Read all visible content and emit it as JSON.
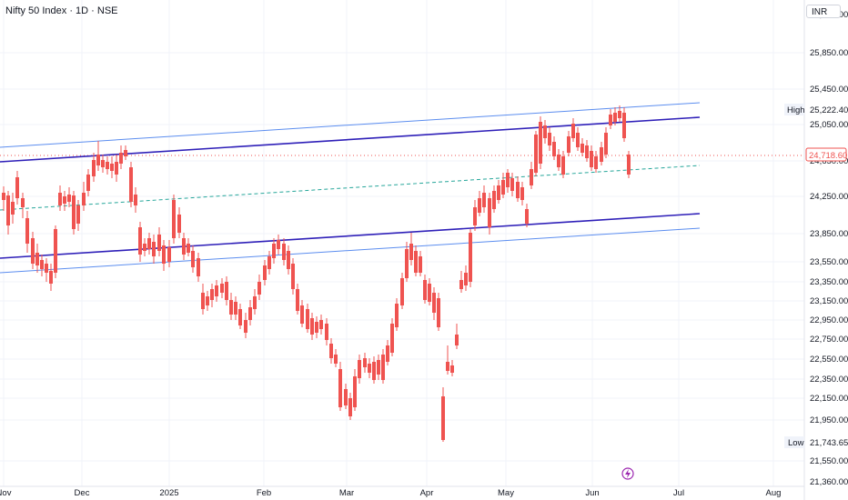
{
  "chart": {
    "symbol_title": "Nifty 50 Index · 1D · NSE",
    "currency": "INR",
    "y_ticks": [
      "25,850.00",
      "25,450.00",
      "25,050.00",
      "24,650.00",
      "24,250.00",
      "23,850.00",
      "23,550.00",
      "23,350.00",
      "23,150.00",
      "22,950.00",
      "22,750.00",
      "22,550.00",
      "22,350.00",
      "22,150.00",
      "21,950.00",
      "21,550.00"
    ],
    "x_ticks": [
      "Nov",
      "Dec",
      "2025",
      "Feb",
      "Mar",
      "Apr",
      "May",
      "Jun",
      "Jul",
      "Aug"
    ],
    "high_label": "High",
    "high_value": "25,222.40",
    "low_label": "Low",
    "low_value": "21,743.65",
    "last_price": "24,718.60",
    "colors": {
      "up": "#1b5e20",
      "down": "#ef5350",
      "channel_outer": "#5b8def",
      "channel_inner": "#2e1fb8",
      "midline": "#26a69a",
      "price_tag": "#ef5350"
    }
  },
  "chart_data": {
    "type": "candlestick",
    "title": "Nifty 50 Index · 1D · NSE",
    "x_categories": [
      "Nov",
      "Dec",
      "2025",
      "Feb",
      "Mar",
      "Apr",
      "May",
      "Jun",
      "Jul",
      "Aug"
    ],
    "ylim": [
      21360,
      26100
    ],
    "y_scale": "log",
    "closes_approx": [
      {
        "period": "Nov",
        "value": 23650
      },
      {
        "period": "Dec",
        "value": 24700
      },
      {
        "period": "2025",
        "value": 23700
      },
      {
        "period": "Feb",
        "value": 23300
      },
      {
        "period": "Mar",
        "value": 22150
      },
      {
        "period": "Apr",
        "value": 23300
      },
      {
        "period": "May",
        "value": 24600
      },
      {
        "period": "Jun",
        "value": 24718.6
      }
    ],
    "high": 25222.4,
    "low": 21743.65,
    "last": 24718.6
  }
}
